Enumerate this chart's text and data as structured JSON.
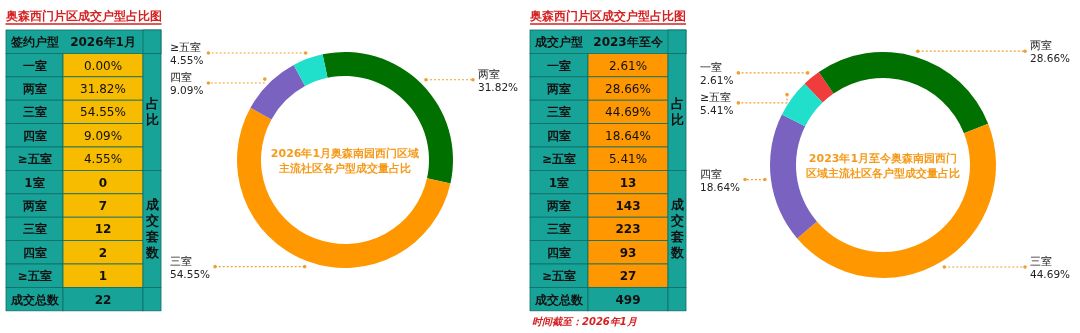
{
  "chart_data": [
    {
      "type": "other",
      "title": "奥森西门片区成交户型占比图",
      "color": "#f7bb00",
      "categories": [
        "一室",
        "两室",
        "三室",
        "四室",
        "≥五室",
        "1室",
        "两室",
        "三室",
        "四室",
        "≥五室",
        "成交总数"
      ],
      "value_labels": [
        "0.00%",
        "31.82%",
        "54.55%",
        "9.09%",
        "4.55%",
        "0",
        "7",
        "12",
        "2",
        "1",
        "22"
      ],
      "annotations": [
        "签约户型",
        "2026年1月",
        "占比",
        "成交套数"
      ]
    },
    {
      "type": "donut",
      "title": "2026年1月奥森南园西门区域主流社区各户型成交量占比",
      "categories": [
        "两室",
        "三室",
        "四室",
        "≥五室"
      ],
      "values": [
        31.82,
        54.55,
        9.09,
        4.55
      ],
      "colors": [
        "#007000",
        "#ff9800",
        "#7a62c0",
        "#20e0cc"
      ],
      "value_labels": [
        "31.82%",
        "54.55%",
        "9.09%",
        "4.55%"
      ]
    },
    {
      "type": "other",
      "title": "奥森西门片区成交户型占比图",
      "color": "#ff9800",
      "categories": [
        "一室",
        "两室",
        "三室",
        "四室",
        "≥五室",
        "1室",
        "两室",
        "三室",
        "四室",
        "≥五室",
        "成交总数"
      ],
      "value_labels": [
        "2.61%",
        "28.66%",
        "44.69%",
        "18.64%",
        "5.41%",
        "13",
        "143",
        "223",
        "93",
        "27",
        "499"
      ],
      "annotations": [
        "成交户型",
        "2023年至今",
        "占比",
        "成交套数",
        "时间截至：2026年1月"
      ]
    },
    {
      "type": "donut",
      "title": "2023年1月至今奥森南园西门区域主流社区各户型成交量占比",
      "categories": [
        "一室",
        "两室",
        "三室",
        "四室",
        "≥五室"
      ],
      "values": [
        2.61,
        28.66,
        44.69,
        18.64,
        5.41
      ],
      "colors": [
        "#f03c3c",
        "#007000",
        "#ff9800",
        "#7a62c0",
        "#20e0cc"
      ],
      "value_labels": [
        "2.61%",
        "28.66%",
        "44.69%",
        "18.64%",
        "5.41%"
      ]
    }
  ]
}
